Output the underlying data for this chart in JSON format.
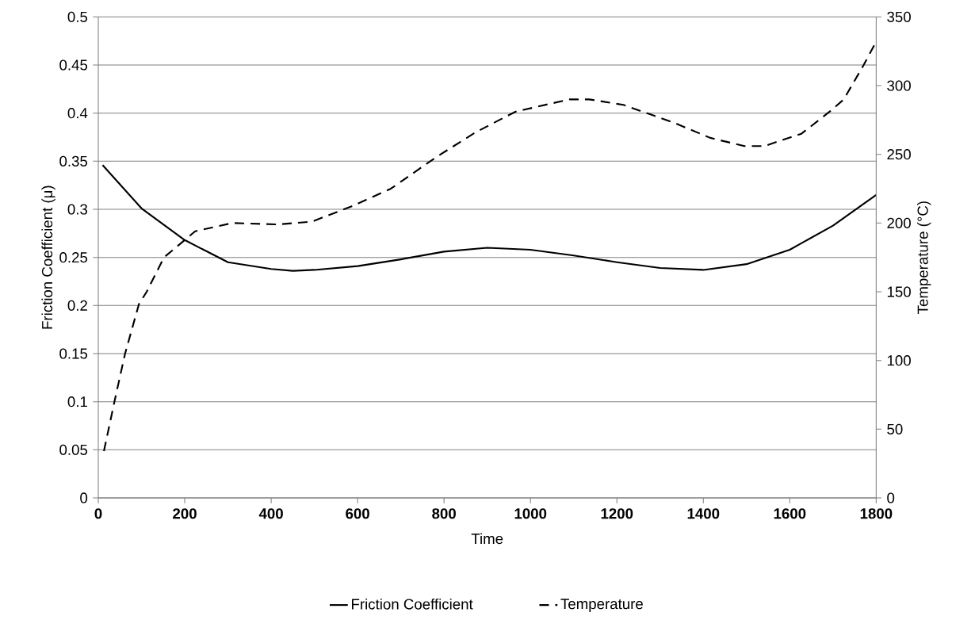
{
  "chart_data": {
    "type": "line",
    "xlabel": "Time",
    "ylabel": "Friction Coefficient (μ)",
    "y2label": "Temperature (°C)",
    "xlim": [
      0,
      1800
    ],
    "xticks": [
      0,
      200,
      400,
      600,
      800,
      1000,
      1200,
      1400,
      1600,
      1800
    ],
    "ylim": [
      0,
      0.5
    ],
    "yticks": [
      0,
      0.05,
      0.1,
      0.15,
      0.2,
      0.25,
      0.3,
      0.35,
      0.4,
      0.45,
      0.5
    ],
    "y2lim": [
      0,
      350
    ],
    "y2ticks": [
      0,
      50,
      100,
      150,
      200,
      250,
      300,
      350
    ],
    "grid": "y",
    "legend": "bottom",
    "marker": "none",
    "series": [
      {
        "name": "Friction Coefficient",
        "color": "#000000",
        "line_style": "solid",
        "x": [
          10,
          100,
          200,
          300,
          400,
          450,
          500,
          600,
          700,
          800,
          900,
          1000,
          1100,
          1200,
          1300,
          1400,
          1500,
          1600,
          1700,
          1800
        ],
        "values": [
          0.346,
          0.301,
          0.268,
          0.245,
          0.238,
          0.236,
          0.237,
          0.241,
          0.248,
          0.256,
          0.26,
          0.258,
          0.252,
          0.245,
          0.239,
          0.237,
          0.243,
          0.258,
          0.283,
          0.315
        ]
      },
      {
        "name": "Temperature",
        "color": "#000000",
        "line_style": "dashed",
        "axis": "y2",
        "x": [
          13,
          38,
          62,
          94,
          112,
          152,
          224,
          310,
          415,
          494,
          585,
          677,
          782,
          873,
          965,
          1090,
          1136,
          1215,
          1332,
          1416,
          1495,
          1541,
          1627,
          1692,
          1725,
          1771,
          1800
        ],
        "values": [
          34,
          71,
          105,
          141,
          150,
          175,
          194,
          200,
          199,
          201,
          212,
          225,
          248,
          266,
          281,
          290,
          290,
          286,
          273,
          262,
          256,
          256,
          265,
          281,
          290,
          315,
          332
        ]
      }
    ]
  }
}
